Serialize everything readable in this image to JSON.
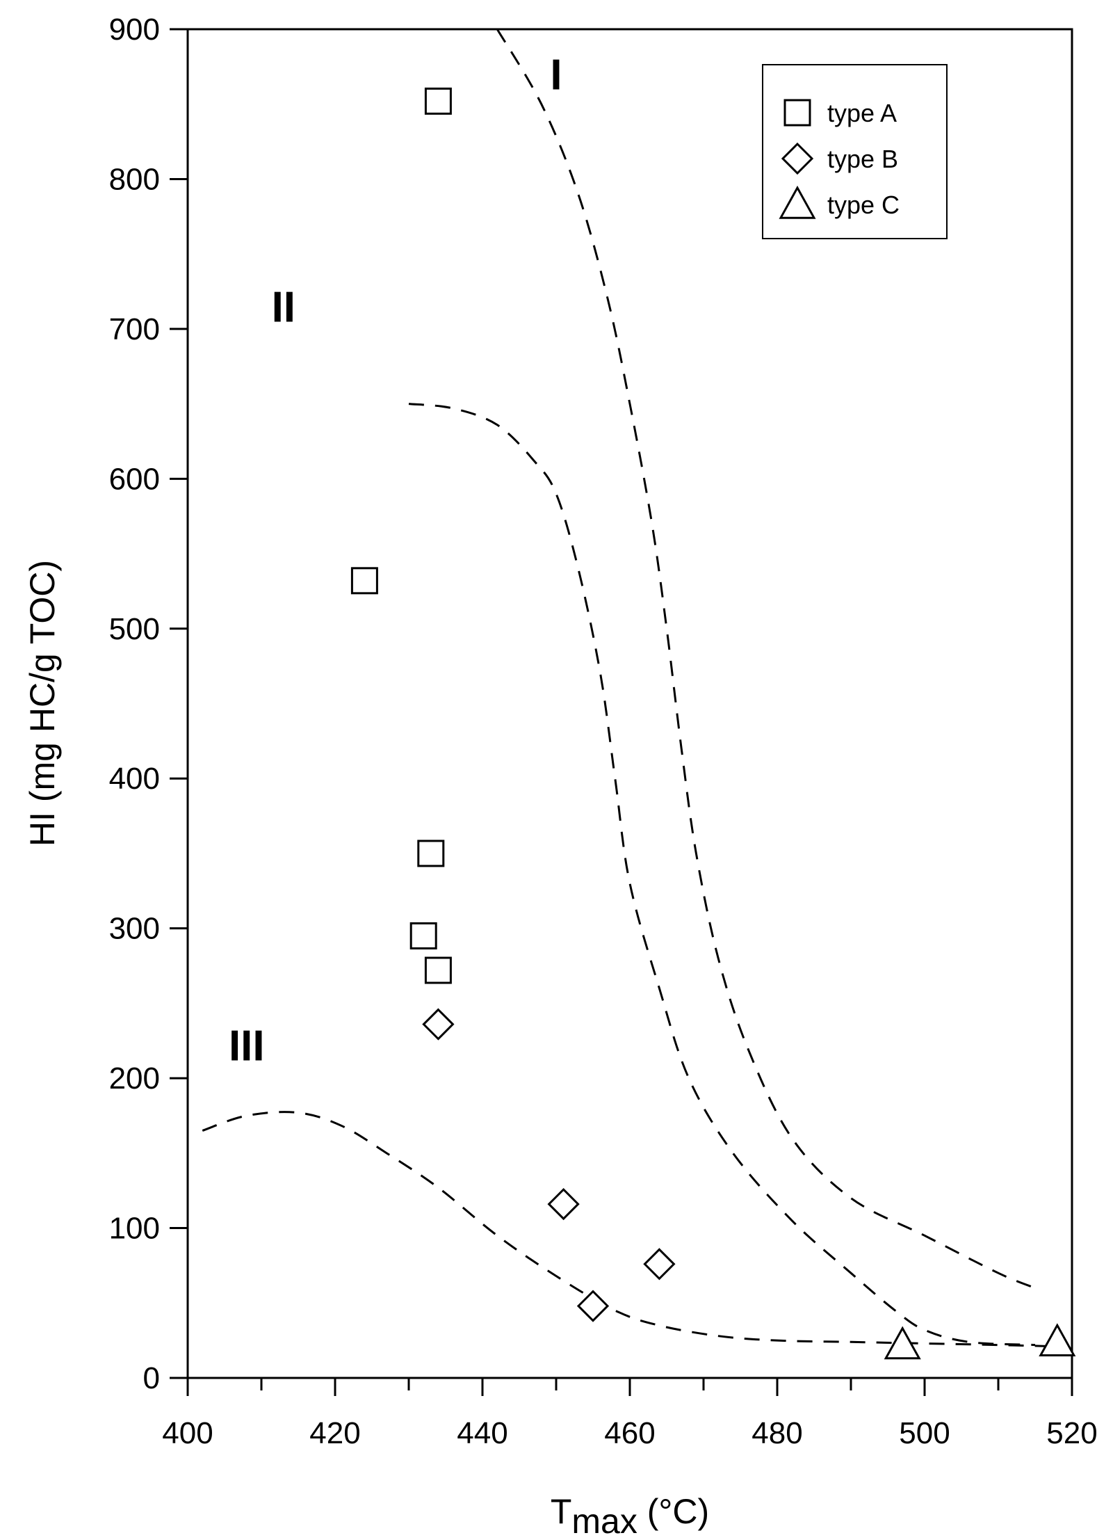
{
  "chart_data": {
    "type": "scatter",
    "title": "",
    "xlabel": "Tmax (°C)",
    "xlabel_main": "T",
    "xlabel_sub": "max",
    "xlabel_unit": " (°C)",
    "ylabel": "HI (mg HC/g TOC)",
    "xlim": [
      400,
      520
    ],
    "ylim": [
      0,
      900
    ],
    "x_ticks": [
      400,
      420,
      440,
      460,
      480,
      500,
      520
    ],
    "x_minor_step": 10,
    "y_ticks": [
      0,
      100,
      200,
      300,
      400,
      500,
      600,
      700,
      800,
      900
    ],
    "grid": false,
    "legend_position": "top-right",
    "series": [
      {
        "name": "type A",
        "marker": "square",
        "points": [
          [
            434,
            852
          ],
          [
            424,
            532
          ],
          [
            433,
            350
          ],
          [
            432,
            295
          ],
          [
            434,
            272
          ]
        ]
      },
      {
        "name": "type B",
        "marker": "diamond",
        "points": [
          [
            434,
            236
          ],
          [
            451,
            116
          ],
          [
            455,
            48
          ],
          [
            464,
            76
          ]
        ]
      },
      {
        "name": "type C",
        "marker": "triangle",
        "points": [
          [
            497,
            22
          ],
          [
            518,
            24
          ]
        ]
      }
    ],
    "boundary_curves": [
      {
        "style": "dashed",
        "points": [
          [
            442,
            900
          ],
          [
            448,
            850
          ],
          [
            453,
            790
          ],
          [
            457,
            720
          ],
          [
            460,
            650
          ],
          [
            463,
            570
          ],
          [
            465,
            500
          ],
          [
            467,
            420
          ],
          [
            469,
            350
          ],
          [
            472,
            280
          ],
          [
            476,
            220
          ],
          [
            482,
            160
          ],
          [
            490,
            120
          ],
          [
            500,
            95
          ],
          [
            510,
            70
          ],
          [
            515,
            60
          ]
        ]
      },
      {
        "style": "dashed",
        "points": [
          [
            430,
            650
          ],
          [
            436,
            647
          ],
          [
            442,
            636
          ],
          [
            447,
            612
          ],
          [
            450,
            590
          ],
          [
            453,
            540
          ],
          [
            456,
            470
          ],
          [
            458,
            400
          ],
          [
            460,
            330
          ],
          [
            464,
            260
          ],
          [
            468,
            200
          ],
          [
            474,
            150
          ],
          [
            482,
            105
          ],
          [
            490,
            70
          ],
          [
            496,
            45
          ],
          [
            500,
            32
          ],
          [
            506,
            24
          ],
          [
            515,
            22
          ]
        ]
      },
      {
        "style": "dashed",
        "points": [
          [
            402,
            165
          ],
          [
            408,
            175
          ],
          [
            415,
            177
          ],
          [
            421,
            168
          ],
          [
            427,
            150
          ],
          [
            434,
            127
          ],
          [
            442,
            95
          ],
          [
            450,
            68
          ],
          [
            458,
            45
          ],
          [
            464,
            35
          ],
          [
            472,
            28
          ],
          [
            480,
            25
          ],
          [
            490,
            24
          ],
          [
            500,
            23
          ],
          [
            510,
            22
          ],
          [
            518,
            21
          ]
        ]
      }
    ],
    "region_labels": [
      {
        "text": "I",
        "x": 450,
        "y": 870
      },
      {
        "text": "II",
        "x": 413,
        "y": 715
      },
      {
        "text": "III",
        "x": 408,
        "y": 222
      }
    ]
  }
}
